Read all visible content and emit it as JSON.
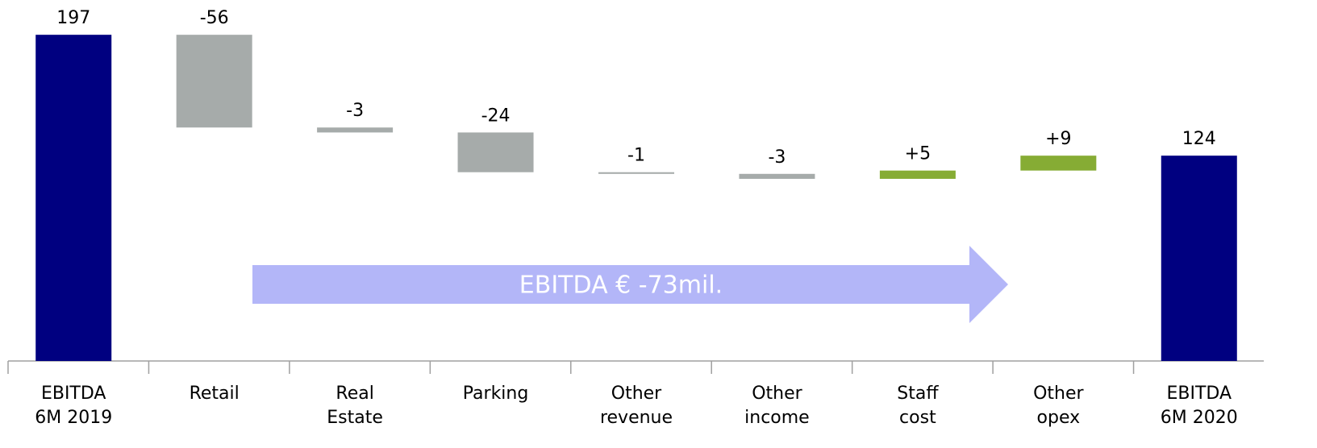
{
  "chart_data": {
    "type": "waterfall",
    "categories": [
      [
        "EBITDA",
        "6M 2019"
      ],
      [
        "Retail"
      ],
      [
        "Real",
        "Estate"
      ],
      [
        "Parking"
      ],
      [
        "Other",
        "revenue"
      ],
      [
        "Other",
        "income"
      ],
      [
        "Staff",
        "cost"
      ],
      [
        "Other",
        "opex"
      ],
      [
        "EBITDA",
        "6M 2020"
      ]
    ],
    "values": [
      197,
      -56,
      -3,
      -24,
      -1,
      -3,
      5,
      9,
      124
    ],
    "value_labels": [
      "197",
      "-56",
      "-3",
      "-24",
      "-1",
      "-3",
      "+5",
      "+9",
      "124"
    ],
    "measure": [
      "total",
      "relative",
      "relative",
      "relative",
      "relative",
      "relative",
      "relative",
      "relative",
      "total"
    ],
    "colors": {
      "total": "#000080",
      "decrease": "#a6abaa",
      "increase": "#86ac34"
    },
    "ylim": [
      0,
      200
    ],
    "annotation": {
      "text": "EBITDA € -73mil.",
      "color": "#b3b6f8"
    }
  }
}
